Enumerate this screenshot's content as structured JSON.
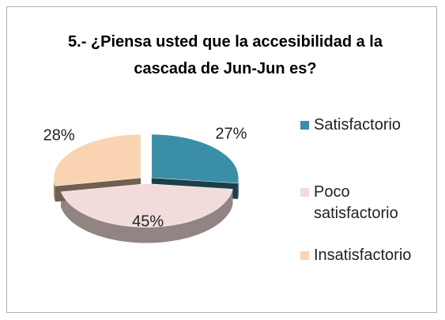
{
  "chart_data": {
    "type": "pie",
    "title": "5.-  ¿Piensa usted que la accesibilidad a la cascada de Jun-Jun es?",
    "categories": [
      "Satisfactorio",
      "Poco satisfactorio",
      "Insatisfactorio"
    ],
    "values": [
      27,
      45,
      28
    ],
    "value_labels": [
      "27%",
      "45%",
      "28%"
    ],
    "colors": [
      "#3a8ea5",
      "#f2dcdb",
      "#fad3b3"
    ],
    "legend": "right"
  }
}
